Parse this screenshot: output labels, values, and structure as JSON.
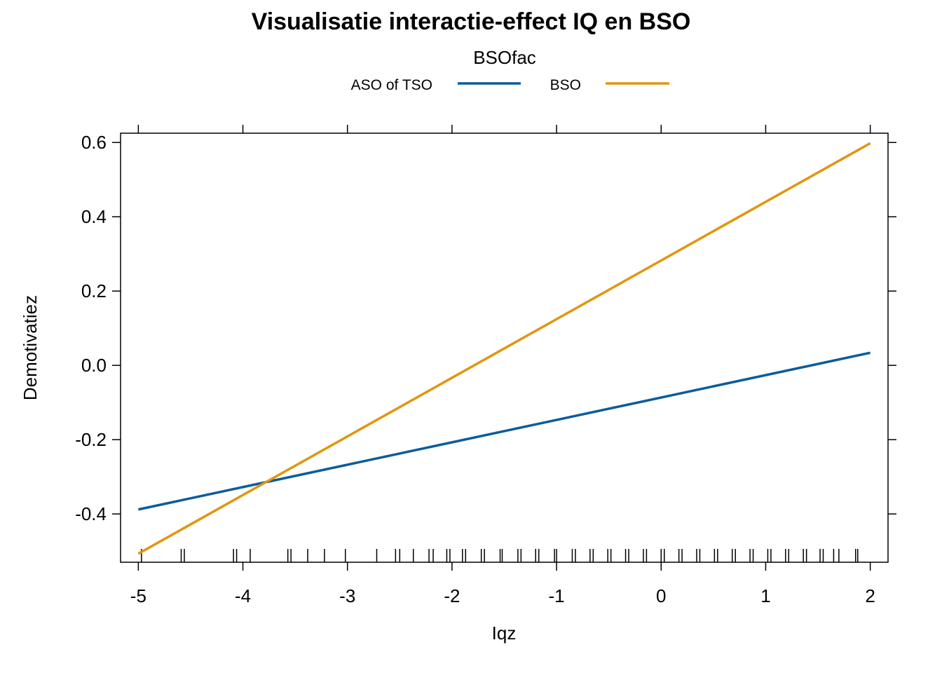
{
  "chart_data": {
    "type": "line",
    "title": "Visualisatie interactie-effect IQ en BSO",
    "xlabel": "Iqz",
    "ylabel": "Demotivatiez",
    "xlim": [
      -5.17,
      2.17
    ],
    "ylim": [
      -0.53,
      0.625
    ],
    "x_ticks": [
      -5,
      -4,
      -3,
      -2,
      -1,
      0,
      1,
      2
    ],
    "y_ticks": [
      -0.4,
      -0.2,
      0.0,
      0.2,
      0.4,
      0.6
    ],
    "x_tick_labels": [
      "-5",
      "-4",
      "-3",
      "-2",
      "-1",
      "0",
      "1",
      "2"
    ],
    "y_tick_labels": [
      "-0.4",
      "-0.2",
      "0.0",
      "0.2",
      "0.4",
      "0.6"
    ],
    "grid": false,
    "legend": {
      "title": "BSOfac",
      "placement": "top"
    },
    "series": [
      {
        "name": "ASO of TSO",
        "color": "#0a5c9c",
        "x": [
          -5,
          2
        ],
        "y": [
          -0.388,
          0.034
        ]
      },
      {
        "name": "BSO",
        "color": "#e0960f",
        "x": [
          -5,
          2
        ],
        "y": [
          -0.507,
          0.598
        ]
      }
    ],
    "rug": [
      -4.97,
      -4.59,
      -4.56,
      -4.09,
      -4.06,
      -3.93,
      -3.57,
      -3.54,
      -3.38,
      -3.22,
      -3.02,
      -2.72,
      -2.54,
      -2.5,
      -2.37,
      -2.22,
      -2.18,
      -2.05,
      -2.02,
      -1.9,
      -1.87,
      -1.72,
      -1.69,
      -1.54,
      -1.52,
      -1.37,
      -1.34,
      -1.2,
      -1.17,
      -1.02,
      -1.0,
      -0.85,
      -0.82,
      -0.68,
      -0.65,
      -0.51,
      -0.48,
      -0.34,
      -0.31,
      -0.17,
      -0.14,
      0.0,
      0.03,
      0.17,
      0.2,
      0.34,
      0.37,
      0.51,
      0.54,
      0.68,
      0.71,
      0.85,
      0.88,
      1.02,
      1.05,
      1.19,
      1.22,
      1.36,
      1.39,
      1.52,
      1.55,
      1.65,
      1.7,
      1.86,
      1.88
    ]
  }
}
